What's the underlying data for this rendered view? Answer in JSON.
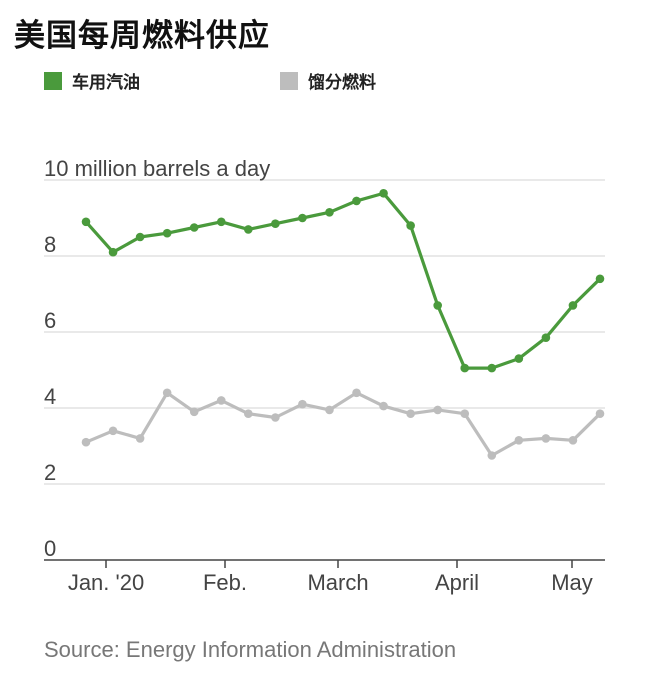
{
  "chart_data": {
    "type": "line",
    "title": "美国每周燃料供应",
    "ylabel": "10 million barrels a day",
    "ylim": [
      0,
      10
    ],
    "yticks": [
      "0",
      "2",
      "4",
      "6",
      "8",
      "10"
    ],
    "xticks": [
      "Jan. '20",
      "Feb.",
      "March",
      "April",
      "May"
    ],
    "grid": true,
    "legend_position": "top",
    "source": "Source: Energy Information Administration",
    "series": [
      {
        "name": "车用汽油",
        "color": "#4a9a3c",
        "values": [
          8.9,
          8.1,
          8.5,
          8.6,
          8.75,
          8.9,
          8.7,
          8.85,
          9.0,
          9.15,
          9.45,
          9.65,
          8.8,
          6.7,
          5.05,
          5.05,
          5.3,
          5.85,
          6.7,
          7.4
        ]
      },
      {
        "name": "馏分燃料",
        "color": "#bdbdbd",
        "values": [
          3.1,
          3.4,
          3.2,
          4.4,
          3.9,
          4.2,
          3.85,
          3.75,
          4.1,
          3.95,
          4.4,
          4.05,
          3.85,
          3.95,
          3.85,
          2.75,
          3.15,
          3.2,
          3.15,
          3.85
        ]
      }
    ]
  }
}
